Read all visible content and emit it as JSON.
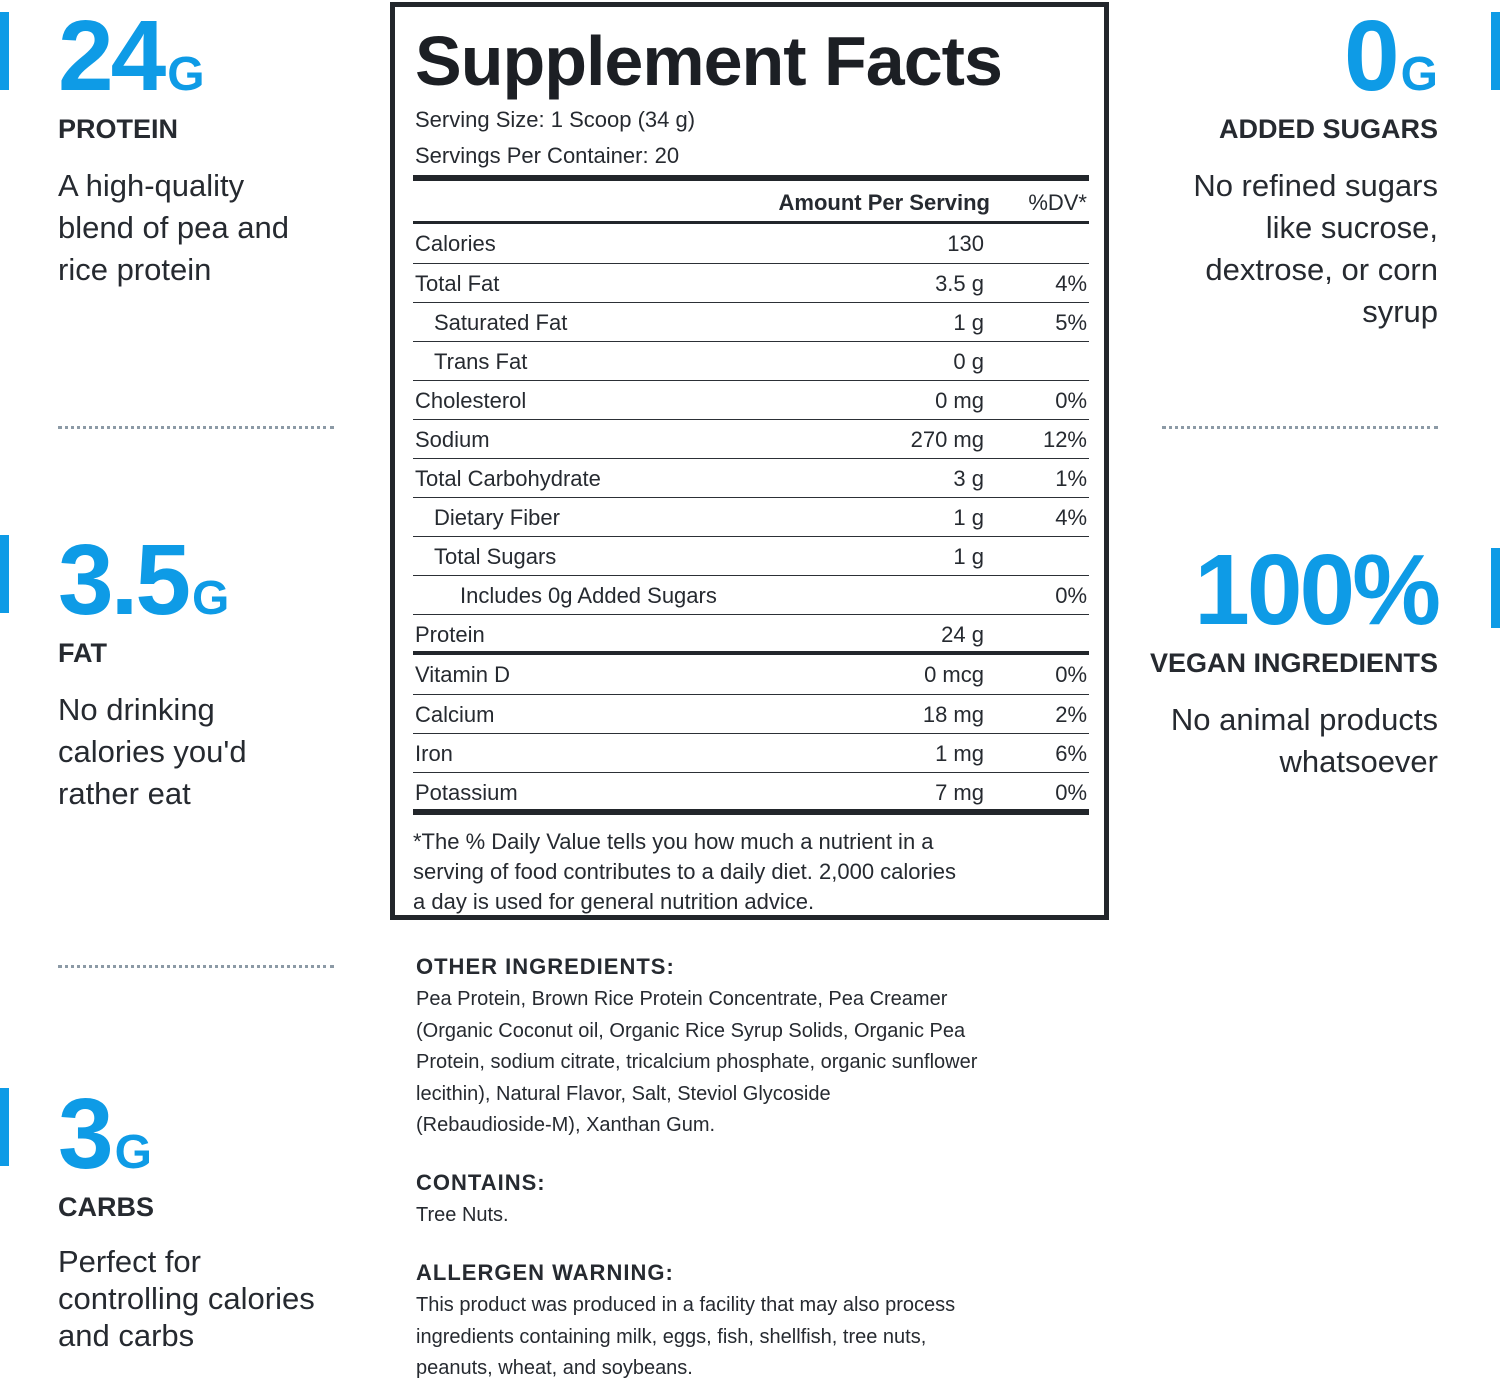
{
  "stats": {
    "protein": {
      "value": "24",
      "unit": "G",
      "label": "PROTEIN",
      "desc": [
        "A high-quality",
        "blend of pea and",
        "rice protein"
      ]
    },
    "fat": {
      "value": "3.5",
      "unit": "G",
      "label": "FAT",
      "desc": [
        "No drinking",
        "calories you'd",
        "rather eat"
      ]
    },
    "carbs": {
      "value": "3",
      "unit": "G",
      "label": "CARBS",
      "desc": [
        "Perfect for",
        "controlling calories",
        "and carbs"
      ]
    },
    "sugars": {
      "value": "0",
      "unit": "G",
      "label": "ADDED SUGARS",
      "desc": [
        "No refined sugars",
        "like sucrose,",
        "dextrose, or corn",
        "syrup"
      ]
    },
    "vegan": {
      "value": "100%",
      "label": "VEGAN INGREDIENTS",
      "desc": [
        "No animal products",
        "whatsoever"
      ]
    }
  },
  "facts": {
    "title": "Supplement Facts",
    "serving_size": "Serving Size: 1 Scoop (34 g)",
    "servings_per_container": "Servings Per Container: 20",
    "header_amount": "Amount Per Serving",
    "header_dv": "%DV*",
    "rows": [
      {
        "name": "Calories",
        "amount": "130",
        "dv": ""
      },
      {
        "name": "Total Fat",
        "amount": "3.5 g",
        "dv": "4%"
      },
      {
        "name": "Saturated Fat",
        "amount": "1 g",
        "dv": "5%"
      },
      {
        "name": "Trans Fat",
        "amount": "0 g",
        "dv": ""
      },
      {
        "name": "Cholesterol",
        "amount": "0 mg",
        "dv": "0%"
      },
      {
        "name": "Sodium",
        "amount": "270 mg",
        "dv": "12%"
      },
      {
        "name": "Total Carbohydrate",
        "amount": "3 g",
        "dv": "1%"
      },
      {
        "name": "Dietary Fiber",
        "amount": "1 g",
        "dv": "4%"
      },
      {
        "name": "Total Sugars",
        "amount": "1 g",
        "dv": ""
      },
      {
        "name": "Includes 0g Added Sugars",
        "amount": "",
        "dv": "0%"
      },
      {
        "name": "Protein",
        "amount": "24 g",
        "dv": ""
      },
      {
        "name": "Vitamin D",
        "amount": "0 mcg",
        "dv": "0%"
      },
      {
        "name": "Calcium",
        "amount": "18 mg",
        "dv": "2%"
      },
      {
        "name": "Iron",
        "amount": "1 mg",
        "dv": "6%"
      },
      {
        "name": "Potassium",
        "amount": "7 mg",
        "dv": "0%"
      }
    ],
    "footnote_lines": [
      "*The % Daily Value tells you how much a nutrient in a",
      "serving of food contributes to a daily diet. 2,000 calories",
      "a day is used for general nutrition advice."
    ]
  },
  "other_ingredients": {
    "title": "OTHER INGREDIENTS:",
    "lines": [
      "Pea Protein, Brown Rice Protein Concentrate, Pea Creamer",
      "(Organic Coconut oil, Organic Rice Syrup Solids, Organic Pea",
      "Protein, sodium citrate, tricalcium phosphate, organic sunflower",
      "lecithin), Natural Flavor, Salt, Steviol Glycoside",
      "(Rebaudioside-M), Xanthan Gum."
    ]
  },
  "contains": {
    "title": "CONTAINS:",
    "text": "Tree Nuts."
  },
  "allergen": {
    "title": "ALLERGEN WARNING:",
    "lines": [
      "This product was produced in a facility that may also process",
      "ingredients containing milk, eggs, fish, shellfish, tree nuts,",
      "peanuts, wheat, and soybeans."
    ]
  },
  "colors": {
    "accent": "#0e9be6",
    "text": "#262a30",
    "border": "#22262b"
  }
}
